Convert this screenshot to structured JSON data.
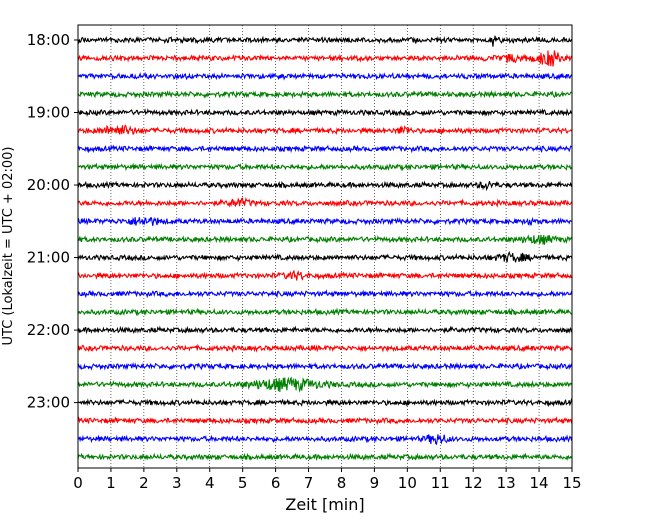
{
  "chart_data": {
    "type": "line",
    "title": "",
    "xlabel": "Zeit  [min]",
    "ylabel": "UTC (Lokalzeit = UTC + 02:00)",
    "xlim": [
      0,
      15
    ],
    "x_ticks": [
      "0",
      "1",
      "2",
      "3",
      "4",
      "5",
      "6",
      "7",
      "8",
      "9",
      "10",
      "11",
      "12",
      "13",
      "14",
      "15"
    ],
    "y_tick_labels": [
      "18:00",
      "19:00",
      "20:00",
      "21:00",
      "22:00",
      "23:00"
    ],
    "grid": "vertical dotted",
    "trace_interval_min": 15,
    "trace_start": "18:00",
    "trace_colors": [
      "#000000",
      "#ff0000",
      "#0000ff",
      "#008000"
    ],
    "traces": [
      {
        "start": "18:00",
        "color": "#000000"
      },
      {
        "start": "18:15",
        "color": "#ff0000"
      },
      {
        "start": "18:30",
        "color": "#0000ff"
      },
      {
        "start": "18:45",
        "color": "#008000"
      },
      {
        "start": "19:00",
        "color": "#000000"
      },
      {
        "start": "19:15",
        "color": "#ff0000"
      },
      {
        "start": "19:30",
        "color": "#0000ff"
      },
      {
        "start": "19:45",
        "color": "#008000"
      },
      {
        "start": "20:00",
        "color": "#000000"
      },
      {
        "start": "20:15",
        "color": "#ff0000"
      },
      {
        "start": "20:30",
        "color": "#0000ff"
      },
      {
        "start": "20:45",
        "color": "#008000"
      },
      {
        "start": "21:00",
        "color": "#000000"
      },
      {
        "start": "21:15",
        "color": "#ff0000"
      },
      {
        "start": "21:30",
        "color": "#0000ff"
      },
      {
        "start": "21:45",
        "color": "#008000"
      },
      {
        "start": "22:00",
        "color": "#000000"
      },
      {
        "start": "22:15",
        "color": "#ff0000"
      },
      {
        "start": "22:30",
        "color": "#0000ff"
      },
      {
        "start": "22:45",
        "color": "#008000"
      },
      {
        "start": "23:00",
        "color": "#000000"
      },
      {
        "start": "23:15",
        "color": "#ff0000"
      },
      {
        "start": "23:30",
        "color": "#0000ff"
      },
      {
        "start": "23:45",
        "color": "#008000"
      }
    ]
  }
}
